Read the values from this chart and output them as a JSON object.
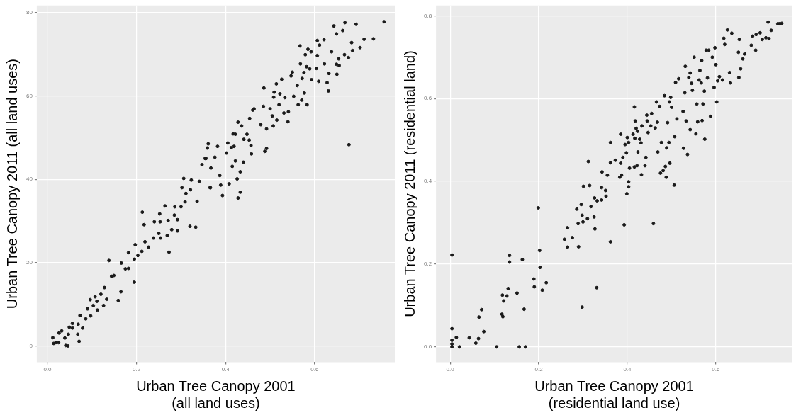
{
  "chart_data": [
    {
      "type": "scatter",
      "xlabel": "Urban Tree Canopy 2001\n(all land uses)",
      "ylabel": "Urban Tree Canopy 2011 (all land uses)",
      "xlim": [
        -0.024,
        0.78
      ],
      "ylim": [
        -3.9,
        81.7
      ],
      "xticks": [
        {
          "value": 0,
          "label": "0.0"
        },
        {
          "value": 0.2,
          "label": "0.2"
        },
        {
          "value": 0.4,
          "label": "0.4"
        },
        {
          "value": 0.6,
          "label": "0.6"
        }
      ],
      "yticks": [
        0,
        20,
        40,
        60,
        80
      ],
      "grid": true,
      "marker": "circle",
      "series": [
        {
          "color": "#1a1a1a",
          "x": [
            0.012,
            0.014,
            0.019,
            0.025,
            0.026,
            0.032,
            0.039,
            0.041,
            0.046,
            0.047,
            0.049,
            0.056,
            0.056,
            0.068,
            0.071,
            0.069,
            0.073,
            0.079,
            0.086,
            0.09,
            0.096,
            0.097,
            0.103,
            0.107,
            0.111,
            0.112,
            0.12,
            0.126,
            0.128,
            0.133,
            0.138,
            0.144,
            0.149,
            0.159,
            0.165,
            0.166,
            0.175,
            0.182,
            0.182,
            0.195,
            0.195,
            0.197,
            0.203,
            0.212,
            0.213,
            0.217,
            0.219,
            0.227,
            0.238,
            0.24,
            0.25,
            0.252,
            0.253,
            0.254,
            0.264,
            0.269,
            0.271,
            0.273,
            0.279,
            0.285,
            0.286,
            0.292,
            0.292,
            0.3,
            0.302,
            0.306,
            0.309,
            0.311,
            0.32,
            0.321,
            0.323,
            0.333,
            0.336,
            0.341,
            0.347,
            0.354,
            0.359,
            0.361,
            0.366,
            0.356,
            0.365,
            0.367,
            0.376,
            0.382,
            0.387,
            0.389,
            0.393,
            0.402,
            0.405,
            0.408,
            0.413,
            0.415,
            0.417,
            0.419,
            0.422,
            0.422,
            0.426,
            0.428,
            0.428,
            0.433,
            0.433,
            0.436,
            0.44,
            0.441,
            0.448,
            0.453,
            0.454,
            0.457,
            0.458,
            0.461,
            0.464,
            0.479,
            0.485,
            0.486,
            0.488,
            0.492,
            0.492,
            0.5,
            0.505,
            0.507,
            0.508,
            0.509,
            0.514,
            0.515,
            0.52,
            0.522,
            0.526,
            0.531,
            0.533,
            0.54,
            0.541,
            0.547,
            0.55,
            0.553,
            0.561,
            0.563,
            0.567,
            0.568,
            0.571,
            0.572,
            0.576,
            0.577,
            0.579,
            0.582,
            0.583,
            0.585,
            0.589,
            0.592,
            0.593,
            0.604,
            0.606,
            0.606,
            0.609,
            0.611,
            0.621,
            0.622,
            0.628,
            0.631,
            0.632,
            0.638,
            0.643,
            0.649,
            0.649,
            0.65,
            0.654,
            0.655,
            0.663,
            0.667,
            0.668,
            0.677,
            0.676,
            0.683,
            0.685,
            0.693,
            0.702,
            0.711,
            0.732,
            0.756
          ],
          "values": [
            2.0,
            0.6,
            0.8,
            0.8,
            3.1,
            3.6,
            1.9,
            0.1,
            0,
            2.8,
            4.5,
            5.4,
            4.3,
            2.8,
            1.1,
            5.2,
            7.3,
            4.3,
            6.5,
            8.9,
            11.1,
            7.2,
            9.7,
            11.8,
            10.7,
            8.6,
            12.4,
            9.7,
            14.0,
            11.2,
            20.5,
            16.7,
            16.9,
            10.9,
            13.0,
            19.9,
            18.5,
            18.6,
            22.4,
            20.8,
            15.3,
            24.3,
            21.7,
            22.7,
            32.1,
            29.1,
            25.0,
            23.7,
            25.9,
            29.8,
            27.0,
            31.7,
            29.8,
            25.9,
            33.6,
            26.5,
            30.1,
            22.5,
            27.9,
            31.4,
            33.4,
            30.3,
            27.6,
            33.4,
            38.0,
            40.2,
            34.6,
            36.6,
            28.7,
            37.5,
            39.8,
            28.5,
            34.7,
            39.5,
            43.5,
            45.0,
            47.5,
            48.5,
            38.0,
            45.0,
            38.0,
            42.7,
            45.3,
            47.9,
            40.9,
            38.6,
            36.1,
            46.3,
            48.7,
            38.9,
            47.6,
            43.1,
            50.9,
            47.9,
            50.8,
            44.4,
            40.1,
            35.5,
            53.7,
            36.9,
            41.8,
            52.8,
            44.1,
            49.6,
            50.8,
            49.4,
            54.6,
            48.1,
            46.1,
            56.6,
            56.9,
            53.1,
            57.5,
            61.9,
            46.7,
            47.4,
            52.1,
            56.9,
            55.2,
            52.8,
            59.7,
            60.9,
            62.9,
            54.2,
            57.9,
            60.5,
            64.0,
            55.9,
            59.6,
            53.8,
            56.2,
            64.8,
            65.7,
            59.9,
            62.5,
            57.9,
            72.0,
            67.7,
            59.0,
            64.2,
            65.6,
            60.7,
            69.9,
            67.0,
            57.9,
            71.2,
            66.5,
            70.6,
            63.9,
            66.6,
            69.7,
            73.3,
            63.5,
            72.2,
            73.5,
            67.7,
            63.2,
            61.2,
            65.4,
            70.6,
            76.8,
            74.9,
            67.6,
            65.2,
            68.9,
            67.3,
            75.7,
            69.9,
            77.6,
            48.3,
            69.2,
            72.8,
            70.9,
            77.2,
            71.6,
            73.6,
            73.7,
            77.8
          ]
        }
      ]
    },
    {
      "type": "scatter",
      "xlabel": "Urban Tree Canopy 2001\n(residential land use)",
      "ylabel": "Urban Tree Canopy 2011 (residential land)",
      "xlim": [
        -0.032,
        0.773
      ],
      "ylim": [
        -0.037,
        0.825
      ],
      "xticks": [
        {
          "value": 0,
          "label": "0.0"
        },
        {
          "value": 0.2,
          "label": "0.2"
        },
        {
          "value": 0.4,
          "label": "0.4"
        },
        {
          "value": 0.6,
          "label": "0.6"
        }
      ],
      "yticks": [
        {
          "value": 0,
          "label": "0.0"
        },
        {
          "value": 0.2,
          "label": "0.2"
        },
        {
          "value": 0.4,
          "label": "0.4"
        },
        {
          "value": 0.6,
          "label": "0.6"
        },
        {
          "value": 0.8,
          "label": "0.8"
        }
      ],
      "grid": true,
      "marker": "circle",
      "series": [
        {
          "color": "#1a1a1a",
          "x": [
            0.004,
            0.004,
            0.004,
            0.004,
            0.004,
            0.014,
            0.021,
            0.043,
            0.058,
            0.064,
            0.065,
            0.071,
            0.076,
            0.105,
            0.117,
            0.119,
            0.118,
            0.121,
            0.128,
            0.131,
            0.134,
            0.134,
            0.151,
            0.156,
            0.163,
            0.167,
            0.17,
            0.189,
            0.19,
            0.199,
            0.202,
            0.203,
            0.208,
            0.217,
            0.258,
            0.265,
            0.265,
            0.276,
            0.286,
            0.289,
            0.29,
            0.296,
            0.298,
            0.298,
            0.3,
            0.301,
            0.31,
            0.312,
            0.315,
            0.318,
            0.325,
            0.326,
            0.331,
            0.332,
            0.327,
            0.342,
            0.342,
            0.343,
            0.351,
            0.352,
            0.355,
            0.362,
            0.362,
            0.362,
            0.373,
            0.383,
            0.385,
            0.385,
            0.387,
            0.39,
            0.393,
            0.395,
            0.398,
            0.399,
            0.4,
            0.403,
            0.403,
            0.403,
            0.405,
            0.413,
            0.416,
            0.416,
            0.417,
            0.418,
            0.42,
            0.422,
            0.423,
            0.424,
            0.428,
            0.431,
            0.432,
            0.433,
            0.44,
            0.442,
            0.444,
            0.445,
            0.447,
            0.453,
            0.455,
            0.459,
            0.463,
            0.466,
            0.468,
            0.469,
            0.473,
            0.475,
            0.477,
            0.481,
            0.484,
            0.486,
            0.488,
            0.489,
            0.491,
            0.494,
            0.495,
            0.496,
            0.498,
            0.5,
            0.506,
            0.507,
            0.509,
            0.512,
            0.516,
            0.526,
            0.527,
            0.53,
            0.531,
            0.533,
            0.536,
            0.539,
            0.542,
            0.542,
            0.545,
            0.547,
            0.551,
            0.555,
            0.557,
            0.559,
            0.562,
            0.564,
            0.567,
            0.568,
            0.569,
            0.571,
            0.574,
            0.575,
            0.578,
            0.581,
            0.584,
            0.588,
            0.592,
            0.596,
            0.598,
            0.6,
            0.602,
            0.604,
            0.608,
            0.615,
            0.618,
            0.62,
            0.626,
            0.631,
            0.633,
            0.636,
            0.651,
            0.652,
            0.653,
            0.656,
            0.661,
            0.665,
            0.68,
            0.683,
            0.69,
            0.691,
            0.7,
            0.705,
            0.713,
            0.718,
            0.72,
            0.725,
            0.74,
            0.744,
            0.749
          ],
          "values": [
            0.222,
            0.044,
            0.016,
            0.007,
            0,
            0.023,
            0,
            0.022,
            0.009,
            0.02,
            0.072,
            0.09,
            0.037,
            0,
            0.079,
            0.073,
            0.125,
            0.111,
            0.123,
            0.141,
            0.221,
            0.205,
            0.13,
            0,
            0.211,
            0.091,
            0,
            0.164,
            0.145,
            0.336,
            0.233,
            0.192,
            0.137,
            0.155,
            0.26,
            0.288,
            0.241,
            0.264,
            0.333,
            0.298,
            0.242,
            0.344,
            0.096,
            0.318,
            0.302,
            0.388,
            0.31,
            0.448,
            0.39,
            0.339,
            0.314,
            0.36,
            0.143,
            0.353,
            0.285,
            0.355,
            0.385,
            0.423,
            0.378,
            0.364,
            0.415,
            0.445,
            0.494,
            0.254,
            0.451,
            0.41,
            0.514,
            0.444,
            0.415,
            0.458,
            0.295,
            0.489,
            0.469,
            0.37,
            0.506,
            0.399,
            0.387,
            0.494,
            0.432,
            0.514,
            0.58,
            0.435,
            0.504,
            0.546,
            0.528,
            0.438,
            0.521,
            0.471,
            0.502,
            0.493,
            0.416,
            0.534,
            0.438,
            0.458,
            0.56,
            0.546,
            0.518,
            0.534,
            0.564,
            0.298,
            0.529,
            0.592,
            0.543,
            0.471,
            0.581,
            0.42,
            0.494,
            0.426,
            0.607,
            0.436,
            0.41,
            0.481,
            0.542,
            0.494,
            0.592,
            0.444,
            0.603,
            0.579,
            0.391,
            0.508,
            0.639,
            0.551,
            0.648,
            0.569,
            0.48,
            0.614,
            0.678,
            0.546,
            0.465,
            0.651,
            0.525,
            0.662,
            0.637,
            0.62,
            0.7,
            0.515,
            0.587,
            0.544,
            0.645,
            0.668,
            0.638,
            0.692,
            0.547,
            0.587,
            0.618,
            0.502,
            0.717,
            0.65,
            0.717,
            0.557,
            0.7,
            0.627,
            0.723,
            0.682,
            0.592,
            0.643,
            0.653,
            0.645,
            0.746,
            0.731,
            0.766,
            0.663,
            0.638,
            0.758,
            0.712,
            0.651,
            0.743,
            0.672,
            0.696,
            0.708,
            0.729,
            0.751,
            0.717,
            0.755,
            0.759,
            0.743,
            0.747,
            0.785,
            0.745,
            0.765,
            0.781,
            0.781,
            0.782
          ]
        }
      ]
    }
  ]
}
